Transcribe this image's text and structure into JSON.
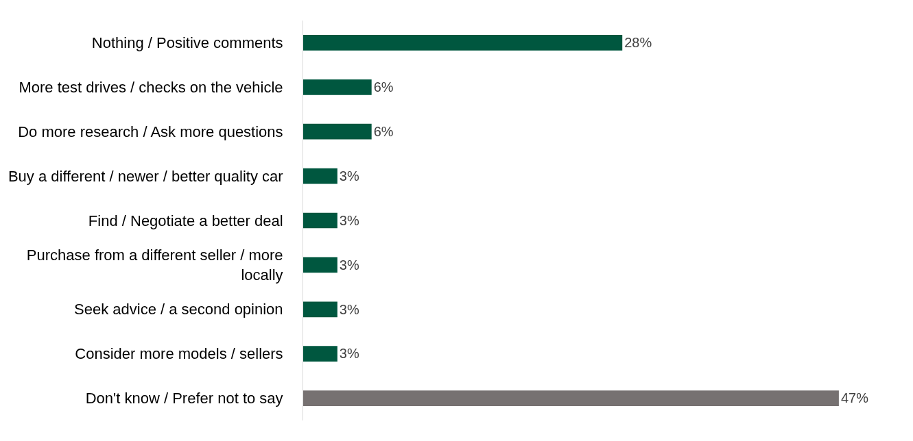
{
  "chart_data": {
    "type": "bar",
    "orientation": "horizontal",
    "categories": [
      "Nothing / Positive comments",
      "More test drives / checks on the vehicle",
      "Do more research / Ask more questions",
      "Buy a different / newer / better quality car",
      "Find / Negotiate a better deal",
      "Purchase from a different seller / more locally",
      "Seek advice / a second opinion",
      "Consider more models / sellers",
      "Don't know / Prefer not to say"
    ],
    "values": [
      28,
      6,
      6,
      3,
      3,
      3,
      3,
      3,
      47
    ],
    "colors": [
      "#00573f",
      "#00573f",
      "#00573f",
      "#00573f",
      "#00573f",
      "#00573f",
      "#00573f",
      "#00573f",
      "#767171"
    ],
    "value_labels": [
      "28%",
      "6%",
      "6%",
      "3%",
      "3%",
      "3%",
      "3%",
      "3%",
      "47%"
    ],
    "data_labels": false
  }
}
